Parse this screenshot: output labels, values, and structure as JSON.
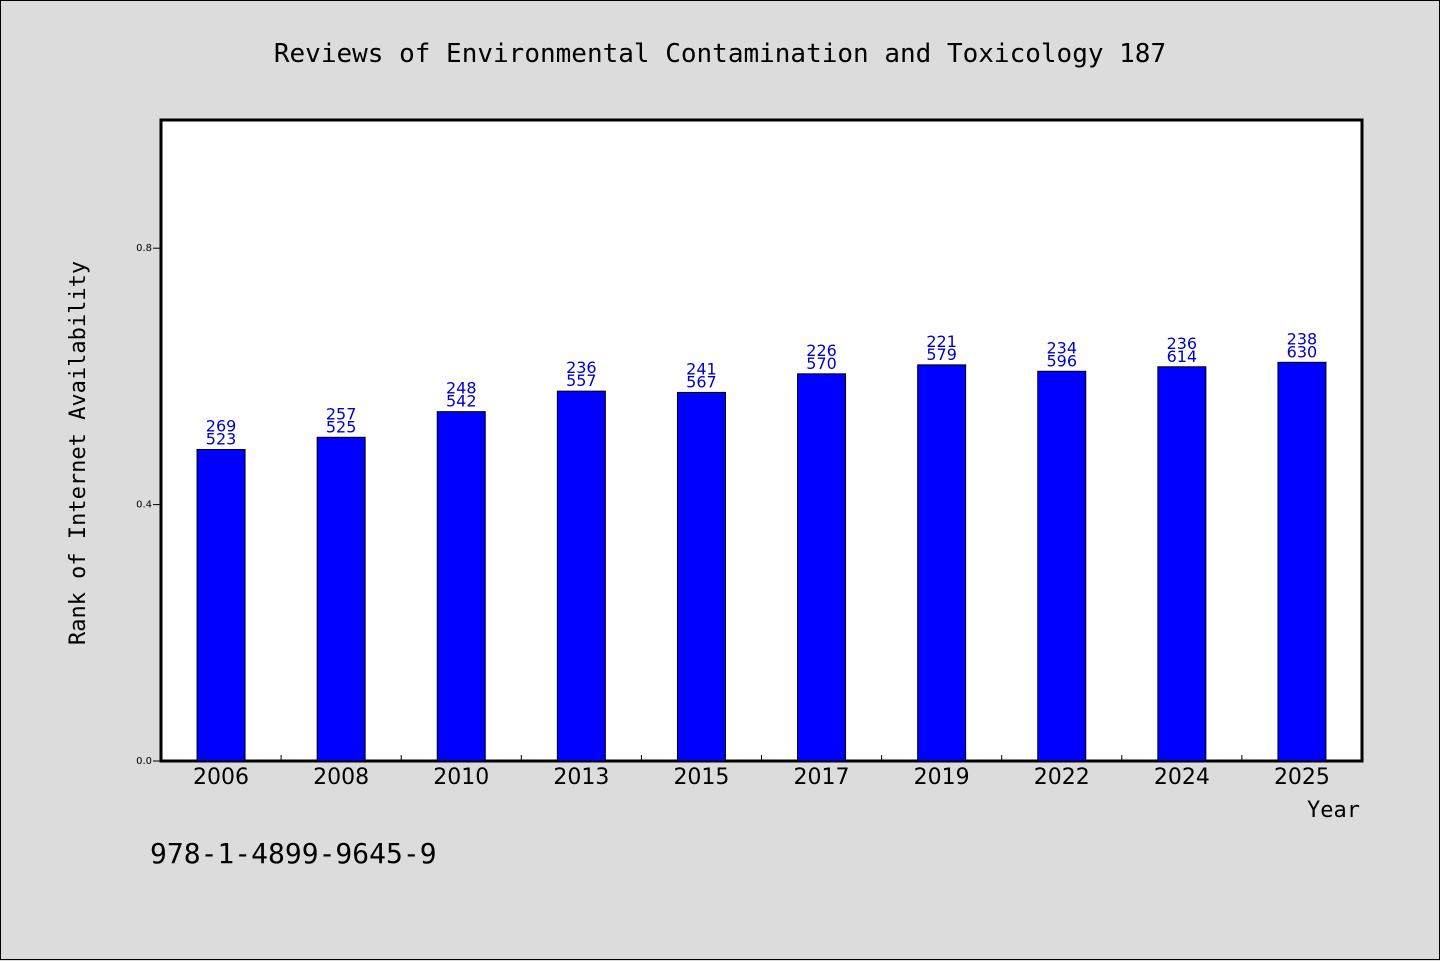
{
  "page": {
    "isbn": "978-1-4899-9645-9",
    "background": "#dcdcdc"
  },
  "chart_data": {
    "type": "bar",
    "title": "Reviews of Environmental Contamination and Toxicology 187",
    "xlabel": "Year",
    "ylabel": "Rank of Internet Availability",
    "categories": [
      "2006",
      "2008",
      "2010",
      "2013",
      "2015",
      "2017",
      "2019",
      "2022",
      "2024",
      "2025"
    ],
    "values": [
      0.486,
      0.505,
      0.545,
      0.577,
      0.575,
      0.604,
      0.618,
      0.608,
      0.615,
      0.622
    ],
    "labels_top": [
      "269",
      "257",
      "248",
      "236",
      "241",
      "226",
      "221",
      "234",
      "236",
      "238"
    ],
    "labels_bottom": [
      "523",
      "525",
      "542",
      "557",
      "567",
      "570",
      "579",
      "596",
      "614",
      "630"
    ],
    "ylim": [
      0,
      1.0
    ],
    "yticks": [
      0.0,
      0.4,
      0.8
    ],
    "ytick_labels": [
      "0.0",
      "0.4",
      "0.8"
    ],
    "bar_color": "#0000ff",
    "label_color": "#0000cc",
    "grid": false,
    "legend": "none"
  }
}
